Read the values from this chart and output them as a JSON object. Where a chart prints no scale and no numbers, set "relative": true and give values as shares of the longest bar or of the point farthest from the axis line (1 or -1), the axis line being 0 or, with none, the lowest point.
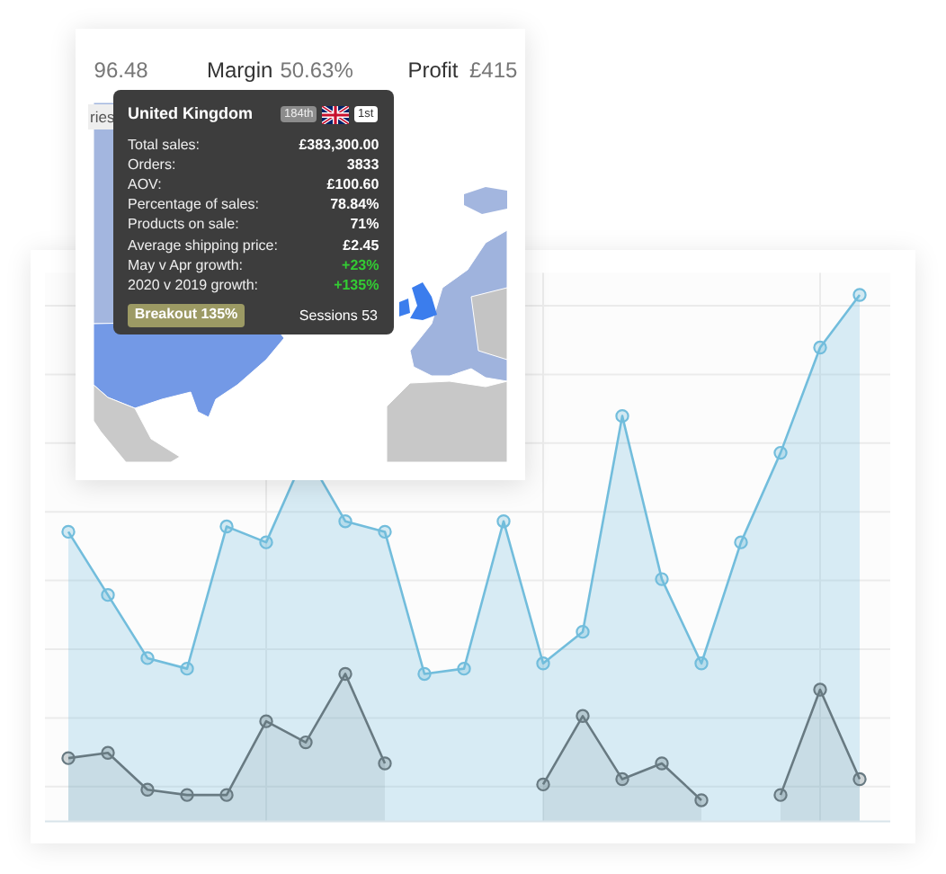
{
  "chart_data": [
    {
      "type": "other",
      "annotations": [
        "96.48",
        "Margin",
        "50.63%",
        "Profit",
        "£415",
        "ries",
        "United Kingdom",
        "184th",
        "1st",
        "Total sales:",
        "£383,300.00",
        "Orders:",
        "3833",
        "AOV:",
        "£100.60",
        "Percentage of sales:",
        "78.84%",
        "Products on sale:",
        "71%",
        "Average shipping price:",
        "£2.45",
        "May v Apr growth:",
        "+23%",
        "2020 v 2019 growth:",
        "+135%",
        "Breakout 135%",
        "Sessions 53"
      ]
    },
    {
      "type": "area",
      "relative": true,
      "categories": [
        null,
        null,
        null,
        null,
        null,
        null,
        null,
        null,
        null,
        null,
        null,
        null,
        null,
        null,
        null,
        null,
        null,
        null,
        null,
        null,
        null
      ],
      "series": [
        {
          "color": "#72bddc",
          "values": [
            0.55,
            0.43,
            0.31,
            0.29,
            0.56,
            0.53,
            0.7,
            0.57,
            0.55,
            0.28,
            0.29,
            0.57,
            0.3,
            0.36,
            0.77,
            0.46,
            0.3,
            0.53,
            0.7,
            0.9,
            1
          ]
        },
        {
          "color": "#687a82",
          "values": [
            0.12,
            0.13,
            0.06,
            0.05,
            0.05,
            0.19,
            0.15,
            0.28,
            0.11,
            null,
            null,
            null,
            0.07,
            0.2,
            0.08,
            0.11,
            0.04,
            null,
            0.05,
            0.25,
            0.08
          ]
        }
      ],
      "grid": true,
      "marker": "circle"
    }
  ]
}
